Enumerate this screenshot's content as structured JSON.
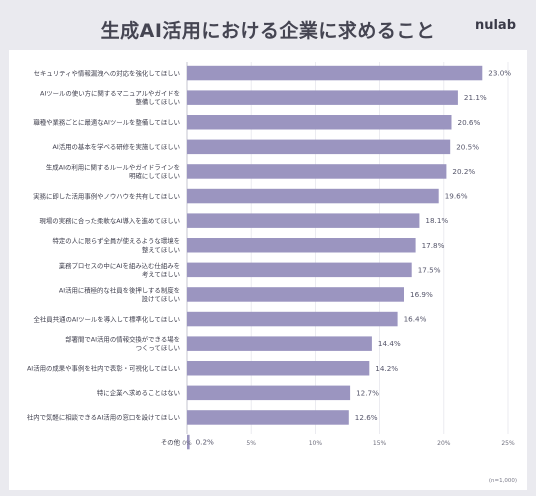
{
  "header": {
    "title": "生成AI活用における企業に求めること",
    "logo": "nulab"
  },
  "chart_data": {
    "type": "bar",
    "orientation": "horizontal",
    "categories": [
      [
        "セキュリティや情報漏洩への対応を強化してほしい"
      ],
      [
        "AIツールの使い方に関するマニュアルやガイドを",
        "整備してほしい"
      ],
      [
        "職種や業務ごとに最適なAIツールを整備してほしい"
      ],
      [
        "AI活用の基本を学べる研修を実施してほしい"
      ],
      [
        "生成AIの利用に関するルールやガイドラインを",
        "明確にしてほしい"
      ],
      [
        "実務に即した活用事例やノウハウを共有してほしい"
      ],
      [
        "現場の実務に合った柔軟なAI導入を進めてほしい"
      ],
      [
        "特定の人に限らず全員が使えるような環境を",
        "整えてほしい"
      ],
      [
        "業務プロセスの中にAIを組み込む仕組みを",
        "考えてほしい"
      ],
      [
        "AI活用に積極的な社員を後押しする制度を",
        "設けてほしい"
      ],
      [
        "全社員共通のAIツールを導入して標準化してほしい"
      ],
      [
        "部署間でAI活用の情報交換ができる場を",
        "つくってほしい"
      ],
      [
        "AI活用の成果や事例を社内で表彰・可視化してほしい"
      ],
      [
        "特に企業へ求めることはない"
      ],
      [
        "社内で気軽に相談できるAI活用の窓口を設けてほしい"
      ],
      [
        "その他"
      ]
    ],
    "values": [
      23.0,
      21.1,
      20.6,
      20.5,
      20.2,
      19.6,
      18.1,
      17.8,
      17.5,
      16.9,
      16.4,
      14.4,
      14.2,
      12.7,
      12.6,
      0.2
    ],
    "value_labels": [
      "23.0%",
      "21.1%",
      "20.6%",
      "20.5%",
      "20.2%",
      "19.6%",
      "18.1%",
      "17.8%",
      "17.5%",
      "16.9%",
      "16.4%",
      "14.4%",
      "14.2%",
      "12.7%",
      "12.6%",
      "0.2%"
    ],
    "xlim": [
      0,
      25
    ],
    "xticks": [
      "0%",
      "5%",
      "10%",
      "15%",
      "20%",
      "25%"
    ],
    "grid": true,
    "bar_color": "#9b95c0",
    "note": "(n=1,000)"
  }
}
